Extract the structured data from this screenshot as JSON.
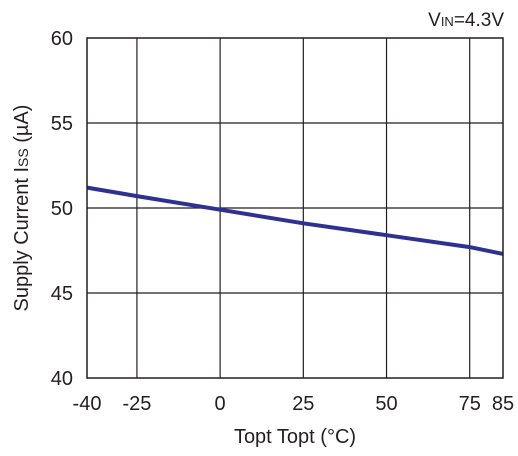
{
  "chart_data": {
    "type": "line",
    "condition": {
      "prefix": "V",
      "subscript": "IN",
      "suffix": "=4.3V"
    },
    "xlabel": "Topt Topt (°C)",
    "ylabel": {
      "main": "Supply Current I",
      "subscript": "SS",
      "unit": " (µA)"
    },
    "xlim": [
      -40,
      85
    ],
    "ylim": [
      40,
      60
    ],
    "x_ticks": [
      -40,
      -25,
      0,
      25,
      50,
      75,
      85
    ],
    "x_gridlines": [
      -25,
      0,
      25,
      50,
      75
    ],
    "y_ticks": [
      40,
      45,
      50,
      55,
      60
    ],
    "grid": true,
    "series": [
      {
        "x": [
          -40,
          -25,
          0,
          25,
          50,
          75,
          85
        ],
        "y": [
          51.2,
          50.7,
          49.9,
          49.1,
          48.4,
          47.7,
          47.3
        ]
      }
    ],
    "colors": {
      "line": "#2e3192",
      "axis": "#231f20"
    }
  }
}
